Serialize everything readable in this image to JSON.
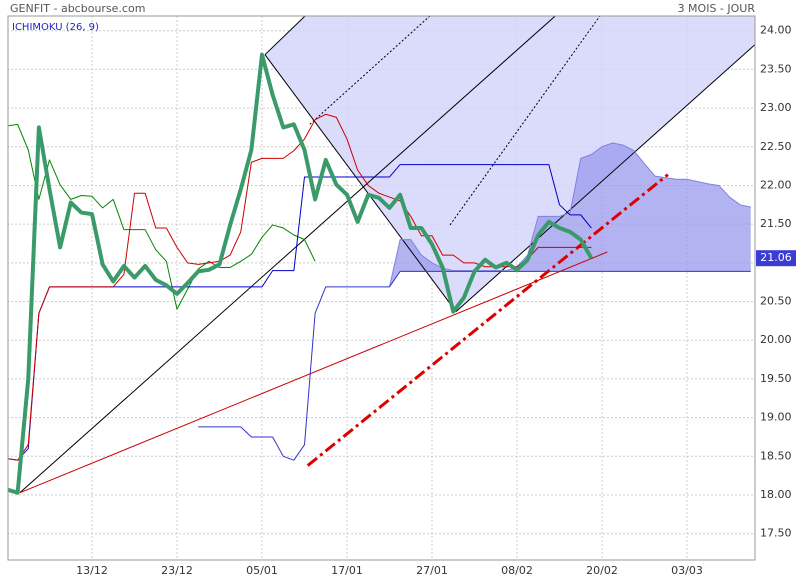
{
  "chart_data": {
    "type": "line",
    "title": "GENFIT - abcbourse.com",
    "subtitle": "3 MOIS - JOUR",
    "indicator": "ICHIMOKU (26, 9)",
    "grid": true,
    "xlim": [
      0,
      70.4
    ],
    "ylim": [
      17.16,
      24.19
    ],
    "xticks": [
      {
        "value": 8,
        "label": "13/12"
      },
      {
        "value": 16,
        "label": "23/12"
      },
      {
        "value": 24,
        "label": "05/01"
      },
      {
        "value": 32,
        "label": "17/01"
      },
      {
        "value": 40,
        "label": "27/01"
      },
      {
        "value": 48,
        "label": "08/02"
      },
      {
        "value": 56,
        "label": "20/02"
      },
      {
        "value": 64,
        "label": "03/03"
      }
    ],
    "yticks": [
      {
        "value": 17.5,
        "label": "17.50"
      },
      {
        "value": 18,
        "label": "18.00"
      },
      {
        "value": 18.5,
        "label": "18.50"
      },
      {
        "value": 19,
        "label": "19.00"
      },
      {
        "value": 19.5,
        "label": "19.50"
      },
      {
        "value": 20,
        "label": "20.00"
      },
      {
        "value": 20.5,
        "label": "20.50"
      },
      {
        "value": 21,
        "label": "21.00"
      },
      {
        "value": 21.5,
        "label": "21.50"
      },
      {
        "value": 22,
        "label": "22.00"
      },
      {
        "value": 22.5,
        "label": "22.50"
      },
      {
        "value": 23,
        "label": "23.00"
      },
      {
        "value": 23.5,
        "label": "23.50"
      },
      {
        "value": 24,
        "label": "24.00"
      }
    ],
    "zone": {
      "color": "#d2d2fa",
      "x": [
        24.28,
        28.05,
        70.4,
        70.4,
        42.26
      ],
      "values": [
        23.69,
        24.19,
        24.19,
        23.82,
        20.37
      ]
    },
    "trendlines": [
      {
        "color": "#000000",
        "dash": "none",
        "width": 1,
        "x": [
          1.22,
          51.6
        ],
        "values": [
          18.03,
          24.19
        ]
      },
      {
        "color": "#000000",
        "dash": "none",
        "width": 1,
        "x": [
          24.28,
          42.26
        ],
        "values": [
          23.69,
          20.37
        ]
      },
      {
        "color": "#000000",
        "dash": "none",
        "width": 1,
        "x": [
          42.26,
          70.4
        ],
        "values": [
          20.37,
          23.82
        ]
      },
      {
        "color": "#000000",
        "dash": "none",
        "width": 1,
        "x": [
          24.28,
          28.05
        ],
        "values": [
          23.69,
          24.19
        ]
      },
      {
        "color": "#000000",
        "dash": "2 2",
        "width": 1,
        "x": [
          28.5,
          39.8
        ],
        "values": [
          22.79,
          24.19
        ]
      },
      {
        "color": "#000000",
        "dash": "2 2",
        "width": 1,
        "x": [
          41.7,
          55.8
        ],
        "values": [
          21.49,
          24.19
        ]
      },
      {
        "color": "#cc0000",
        "dash": "none",
        "width": 1,
        "x": [
          1.22,
          56.5
        ],
        "values": [
          18.03,
          21.14
        ]
      },
      {
        "color": "#dd0000",
        "dash": "12 4 3 4",
        "width": 3,
        "x": [
          28.3,
          62.2
        ],
        "values": [
          18.38,
          22.14
        ]
      }
    ],
    "series": [
      {
        "color": "#8080e0",
        "width": 1,
        "fill": "#9a9aee",
        "x": [
          36,
          37,
          38,
          39,
          40,
          41,
          42,
          43,
          44,
          45,
          46,
          47,
          48,
          49,
          50,
          51,
          52,
          53,
          54,
          55,
          56,
          57,
          58,
          59,
          60,
          61,
          62,
          63,
          64,
          65,
          66,
          67,
          68,
          69,
          70
        ],
        "values": [
          20.69,
          21.3,
          21.3,
          21.1,
          21.0,
          20.93,
          20.9,
          20.9,
          20.9,
          20.9,
          20.9,
          20.9,
          20.95,
          21.1,
          21.6,
          21.6,
          21.6,
          21.65,
          22.35,
          22.4,
          22.5,
          22.55,
          22.52,
          22.45,
          22.28,
          22.12,
          22.1,
          22.08,
          22.08,
          22.05,
          22.02,
          22.0,
          21.85,
          21.75,
          21.72
        ]
      },
      {
        "color": "#3333cc",
        "width": 1,
        "x": [
          18,
          19,
          20,
          21,
          22,
          23,
          24,
          25,
          26,
          27,
          28,
          29,
          30,
          31,
          32,
          33,
          34,
          35,
          36,
          37,
          38,
          39,
          40,
          41,
          42,
          43,
          44,
          45,
          46,
          47,
          48,
          49,
          50,
          51,
          52,
          53,
          54,
          55,
          56,
          57,
          58,
          59,
          60,
          61,
          62,
          63,
          64,
          65,
          66,
          67,
          68,
          69,
          70
        ],
        "values": [
          18.88,
          18.88,
          18.88,
          18.88,
          18.88,
          18.75,
          18.75,
          18.75,
          18.5,
          18.45,
          18.65,
          20.35,
          20.69,
          20.69,
          20.69,
          20.69,
          20.69,
          20.69,
          20.69,
          20.89,
          20.89,
          20.89,
          20.89,
          20.89,
          20.89,
          20.89,
          20.89,
          20.89,
          20.89,
          20.89,
          20.89,
          20.89,
          20.89,
          20.89,
          20.89,
          20.89,
          20.89,
          20.89,
          20.89,
          20.89,
          20.89,
          20.89,
          20.89,
          20.89,
          20.89,
          20.89,
          20.89,
          20.89,
          20.89,
          20.89,
          20.89,
          20.89,
          20.89
        ]
      },
      {
        "color": "#008800",
        "width": 1,
        "x": [
          0,
          1,
          2,
          3,
          4,
          5,
          6,
          7,
          8,
          9,
          10,
          11,
          12,
          13,
          14,
          15,
          16,
          17,
          18,
          19,
          20,
          21,
          22,
          23,
          24,
          25,
          26,
          27,
          28,
          29
        ],
        "values": [
          22.77,
          22.79,
          22.46,
          21.82,
          22.33,
          22.01,
          21.82,
          21.87,
          21.86,
          21.71,
          21.82,
          21.43,
          21.43,
          21.43,
          21.17,
          21.02,
          20.4,
          20.66,
          20.92,
          21.02,
          20.94,
          20.94,
          21.02,
          21.11,
          21.33,
          21.49,
          21.45,
          21.36,
          21.3,
          21.02
        ]
      },
      {
        "color": "#0000cc",
        "width": 1,
        "x": [
          0,
          1,
          2,
          3,
          4,
          5,
          6,
          7,
          8,
          9,
          10,
          11,
          12,
          13,
          14,
          15,
          16,
          17,
          18,
          19,
          20,
          21,
          22,
          23,
          24,
          25,
          26,
          27,
          28,
          29,
          30,
          31,
          32,
          33,
          34,
          35,
          36,
          37,
          38,
          39,
          40,
          41,
          42,
          43,
          44,
          45,
          46,
          47,
          48,
          49,
          50,
          51,
          52,
          53,
          54,
          55
        ],
        "values": [
          18.47,
          18.45,
          18.6,
          20.35,
          20.69,
          20.69,
          20.69,
          20.69,
          20.69,
          20.69,
          20.69,
          20.69,
          20.69,
          20.69,
          20.69,
          20.69,
          20.69,
          20.69,
          20.69,
          20.69,
          20.69,
          20.69,
          20.69,
          20.69,
          20.69,
          20.9,
          20.9,
          20.9,
          22.11,
          22.11,
          22.11,
          22.11,
          22.11,
          22.11,
          22.11,
          22.11,
          22.11,
          22.27,
          22.27,
          22.27,
          22.27,
          22.27,
          22.27,
          22.27,
          22.27,
          22.27,
          22.27,
          22.27,
          22.27,
          22.27,
          22.27,
          22.27,
          21.75,
          21.62,
          21.62,
          21.45
        ]
      },
      {
        "color": "#cc0000",
        "width": 1,
        "x": [
          0,
          1,
          2,
          3,
          4,
          5,
          6,
          7,
          8,
          9,
          10,
          11,
          12,
          13,
          14,
          15,
          16,
          17,
          18,
          19,
          20,
          21,
          22,
          23,
          24,
          25,
          26,
          27,
          28,
          29,
          30,
          31,
          32,
          33,
          34,
          35,
          36,
          37,
          38,
          39,
          40,
          41,
          42,
          43,
          44,
          45,
          46,
          47,
          48,
          49,
          50,
          51,
          52,
          53,
          54,
          55
        ],
        "values": [
          18.47,
          18.45,
          18.65,
          20.35,
          20.69,
          20.69,
          20.69,
          20.69,
          20.69,
          20.69,
          20.69,
          20.85,
          21.9,
          21.9,
          21.45,
          21.45,
          21.2,
          21.0,
          20.98,
          21.0,
          21.02,
          21.1,
          21.4,
          22.3,
          22.35,
          22.35,
          22.35,
          22.45,
          22.6,
          22.85,
          22.92,
          22.88,
          22.6,
          22.2,
          22.0,
          21.9,
          21.85,
          21.8,
          21.6,
          21.35,
          21.35,
          21.1,
          21.1,
          21.0,
          21.0,
          20.95,
          20.95,
          20.95,
          20.95,
          21.05,
          21.2,
          21.2,
          21.2,
          21.2,
          21.2,
          21.2
        ]
      },
      {
        "color": "#3a9a6a",
        "width": 4,
        "last_label_color": "#3b3bd6",
        "x": [
          0,
          1,
          2,
          3,
          4,
          5,
          6,
          7,
          8,
          9,
          10,
          11,
          12,
          13,
          14,
          15,
          16,
          17,
          18,
          19,
          20,
          21,
          22,
          23,
          24,
          25,
          26,
          27,
          28,
          29,
          30,
          31,
          32,
          33,
          34,
          35,
          36,
          37,
          38,
          39,
          40,
          41,
          42,
          43,
          44,
          45,
          46,
          47,
          48,
          49,
          50,
          51,
          52,
          53,
          54,
          55
        ],
        "values": [
          18.07,
          18.03,
          19.5,
          22.75,
          21.95,
          21.2,
          21.78,
          21.65,
          21.63,
          20.98,
          20.76,
          20.96,
          20.81,
          20.96,
          20.78,
          20.71,
          20.6,
          20.74,
          20.89,
          20.91,
          20.98,
          21.49,
          21.95,
          22.46,
          23.69,
          23.17,
          22.75,
          22.79,
          22.46,
          21.82,
          22.33,
          22.01,
          21.88,
          21.53,
          21.88,
          21.84,
          21.71,
          21.88,
          21.45,
          21.45,
          21.24,
          20.94,
          20.37,
          20.55,
          20.89,
          21.04,
          20.94,
          21.0,
          20.91,
          21.04,
          21.36,
          21.53,
          21.45,
          21.4,
          21.3,
          21.06
        ]
      }
    ]
  }
}
